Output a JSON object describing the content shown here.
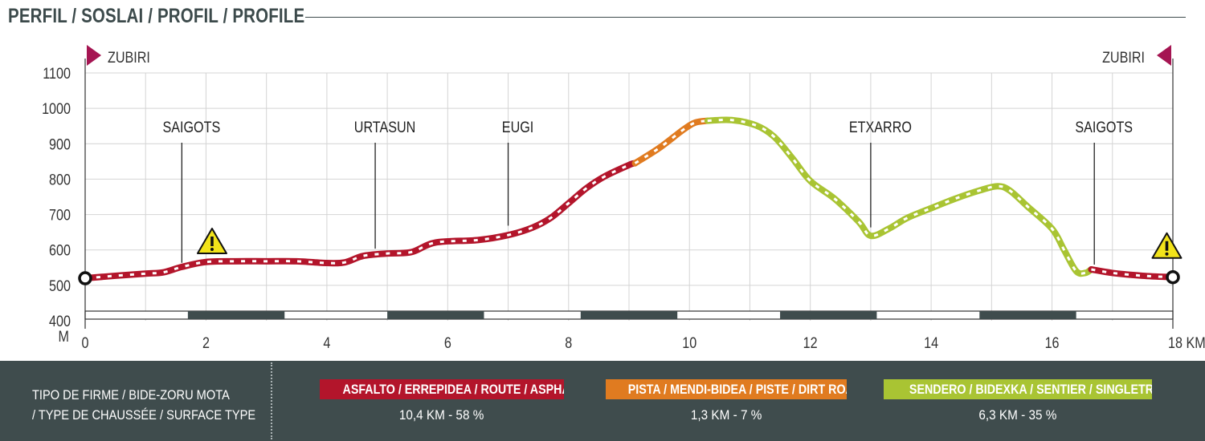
{
  "title": "PERFIL / SOSLAI / PROFIL / PROFILE",
  "colors": {
    "asphalt": "#b3152b",
    "dirt_road": "#e07b20",
    "singletrack": "#a9c433",
    "bar_dark": "#3f4c4d",
    "marker": "#a51552",
    "footer_bg": "#3f4c4d"
  },
  "chart_data": {
    "type": "line",
    "xlabel": "KM",
    "ylabel": "M",
    "xlim": [
      0,
      18
    ],
    "ylim": [
      400,
      1100
    ],
    "x_ticks": [
      "0",
      "2",
      "4",
      "6",
      "8",
      "10",
      "12",
      "14",
      "16",
      "18 KM"
    ],
    "y_ticks": [
      "400",
      "500",
      "600",
      "700",
      "800",
      "900",
      "1000",
      "1100"
    ],
    "grid": true,
    "series": [
      {
        "surface": "asphalt",
        "points": [
          [
            0,
            520
          ],
          [
            0.5,
            527
          ],
          [
            1,
            533
          ],
          [
            1.3,
            537
          ],
          [
            1.6,
            552
          ],
          [
            2,
            566
          ],
          [
            2.5,
            568
          ],
          [
            3,
            568
          ],
          [
            3.5,
            568
          ],
          [
            4,
            563
          ],
          [
            4.3,
            565
          ],
          [
            4.6,
            583
          ],
          [
            5,
            590
          ],
          [
            5.4,
            594
          ],
          [
            5.8,
            621
          ],
          [
            6.5,
            628
          ],
          [
            7,
            642
          ],
          [
            7.4,
            663
          ],
          [
            7.7,
            690
          ],
          [
            8,
            732
          ],
          [
            8.3,
            775
          ],
          [
            8.6,
            808
          ],
          [
            9,
            840
          ],
          [
            9.1,
            845
          ]
        ]
      },
      {
        "surface": "dirt_road",
        "points": [
          [
            9.1,
            845
          ],
          [
            9.5,
            888
          ],
          [
            9.9,
            940
          ],
          [
            10.1,
            960
          ],
          [
            10.3,
            965
          ]
        ]
      },
      {
        "surface": "singletrack",
        "points": [
          [
            10.3,
            965
          ],
          [
            10.7,
            967
          ],
          [
            11.1,
            952
          ],
          [
            11.4,
            920
          ],
          [
            11.7,
            860
          ],
          [
            12.0,
            795
          ],
          [
            12.4,
            745
          ],
          [
            12.8,
            680
          ],
          [
            13.0,
            640
          ],
          [
            13.3,
            660
          ],
          [
            13.6,
            690
          ],
          [
            14.0,
            718
          ],
          [
            14.4,
            745
          ],
          [
            14.8,
            768
          ],
          [
            15.1,
            780
          ],
          [
            15.3,
            768
          ],
          [
            15.6,
            722
          ],
          [
            16.0,
            660
          ],
          [
            16.2,
            600
          ],
          [
            16.4,
            540
          ],
          [
            16.55,
            535
          ],
          [
            16.65,
            545
          ]
        ]
      },
      {
        "surface": "asphalt",
        "points": [
          [
            16.65,
            545
          ],
          [
            17.0,
            535
          ],
          [
            17.5,
            527
          ],
          [
            18,
            523
          ]
        ]
      }
    ],
    "annotations": [
      {
        "label": "SAIGOTS",
        "x": 1.6,
        "y": 550
      },
      {
        "label": "URTASUN",
        "x": 4.8,
        "y": 590
      },
      {
        "label": "EUGI",
        "x": 7.0,
        "y": 655
      },
      {
        "label": "ETXARRO",
        "x": 13.0,
        "y": 650
      },
      {
        "label": "SAIGOTS",
        "x": 16.7,
        "y": 545
      }
    ],
    "warnings": [
      {
        "x": 2.1,
        "y": 622
      },
      {
        "x": 17.9,
        "y": 609
      }
    ],
    "start_label": "ZUBIRI",
    "end_label": "ZUBIRI",
    "distance_bands": [
      [
        1.7,
        3.3
      ],
      [
        5.0,
        6.6
      ],
      [
        8.2,
        9.8
      ],
      [
        11.5,
        13.1
      ],
      [
        14.8,
        16.4
      ]
    ]
  },
  "footer": {
    "surface_type_line1": "TIPO DE FIRME / BIDE-ZORU MOTA",
    "surface_type_line2": "/ TYPE DE CHAUSSÉE / SURFACE TYPE",
    "asphalt_label": "ASFALTO / ERREPIDEA / ROUTE / ASPHALT",
    "asphalt_stat": "10,4 KM - 58 %",
    "dirt_label": "PISTA / MENDI-BIDEA / PISTE / DIRT ROAD",
    "dirt_stat": "1,3 KM - 7 %",
    "singletrack_label": "SENDERO  / BIDEXKA / SENTIER / SINGLETRACK",
    "singletrack_stat": "6,3 KM - 35 %"
  }
}
